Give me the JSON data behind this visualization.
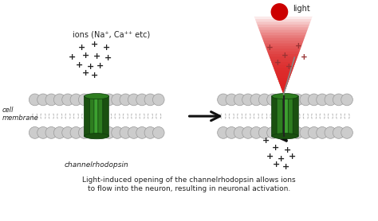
{
  "bg_color": "#ffffff",
  "head_color": "#cccccc",
  "head_edge_color": "#999999",
  "tail_color": "#bbbbbb",
  "protein_green": "#2e7d20",
  "protein_dark": "#1a5010",
  "protein_highlight": "#3da030",
  "arrow_color": "#111111",
  "plus_color": "#222222",
  "plus_red_color": "#993333",
  "light_red": "#cc0000",
  "light_cone_color": "#dd2222",
  "title_text": "Light-induced opening of the channelrhodopsin allows ions\nto flow into the neuron, resulting in neuronal activation.",
  "label_cell_membrane": "cell\nmembrane",
  "label_channelrhodopsin": "channelrhodopsin",
  "label_ions": "ions (Na⁺, Ca⁺⁺ etc)",
  "label_light": "light",
  "figsize": [
    4.74,
    2.78
  ],
  "dpi": 100
}
